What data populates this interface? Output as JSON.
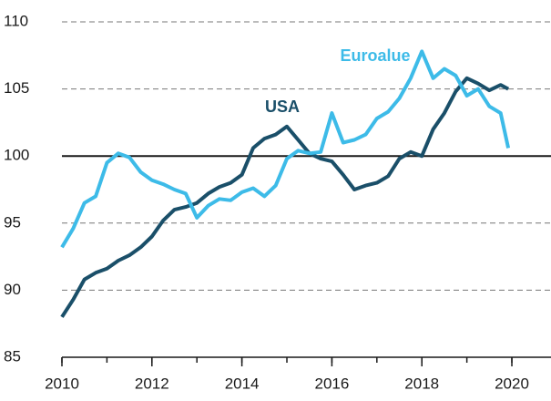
{
  "chart_data": {
    "type": "line",
    "x": [
      2010,
      2010.25,
      2010.5,
      2010.75,
      2011,
      2011.25,
      2011.5,
      2011.75,
      2012,
      2012.25,
      2012.5,
      2012.75,
      2013,
      2013.25,
      2013.5,
      2013.75,
      2014,
      2014.25,
      2014.5,
      2014.75,
      2015,
      2015.25,
      2015.5,
      2015.75,
      2016,
      2016.25,
      2016.5,
      2016.75,
      2017,
      2017.25,
      2017.5,
      2017.75,
      2018,
      2018.25,
      2018.5,
      2018.75,
      2019,
      2019.25,
      2019.5,
      2019.75,
      2019.92
    ],
    "series": [
      {
        "name": "USA",
        "color": "#1a4f69",
        "values": [
          88.0,
          89.3,
          90.8,
          91.3,
          91.6,
          92.2,
          92.6,
          93.2,
          94.0,
          95.2,
          96.0,
          96.2,
          96.5,
          97.2,
          97.7,
          98.0,
          98.6,
          100.6,
          101.3,
          101.6,
          102.2,
          101.2,
          100.2,
          99.8,
          99.6,
          98.6,
          97.5,
          97.8,
          98.0,
          98.5,
          99.8,
          100.3,
          100.0,
          102.0,
          103.2,
          104.8,
          105.8,
          105.4,
          104.9,
          105.3,
          105.0
        ]
      },
      {
        "name": "Euroalue",
        "color": "#3dbbe8",
        "values": [
          93.2,
          94.6,
          96.5,
          97.0,
          99.5,
          100.2,
          99.9,
          98.8,
          98.2,
          97.9,
          97.5,
          97.2,
          95.4,
          96.3,
          96.8,
          96.7,
          97.3,
          97.6,
          97.0,
          97.8,
          99.8,
          100.4,
          100.2,
          100.3,
          103.2,
          101.0,
          101.2,
          101.6,
          102.8,
          103.3,
          104.3,
          105.8,
          107.8,
          105.8,
          106.5,
          106.0,
          104.5,
          105.0,
          103.7,
          103.2,
          100.6
        ]
      }
    ],
    "xlim": [
      2010,
      2020.87
    ],
    "xticks": [
      2010,
      2012,
      2014,
      2016,
      2018,
      2020
    ],
    "ylim": [
      85,
      110
    ],
    "yticks": [
      85,
      90,
      95,
      100,
      105,
      110
    ],
    "reference_line": 100,
    "grid": true
  }
}
